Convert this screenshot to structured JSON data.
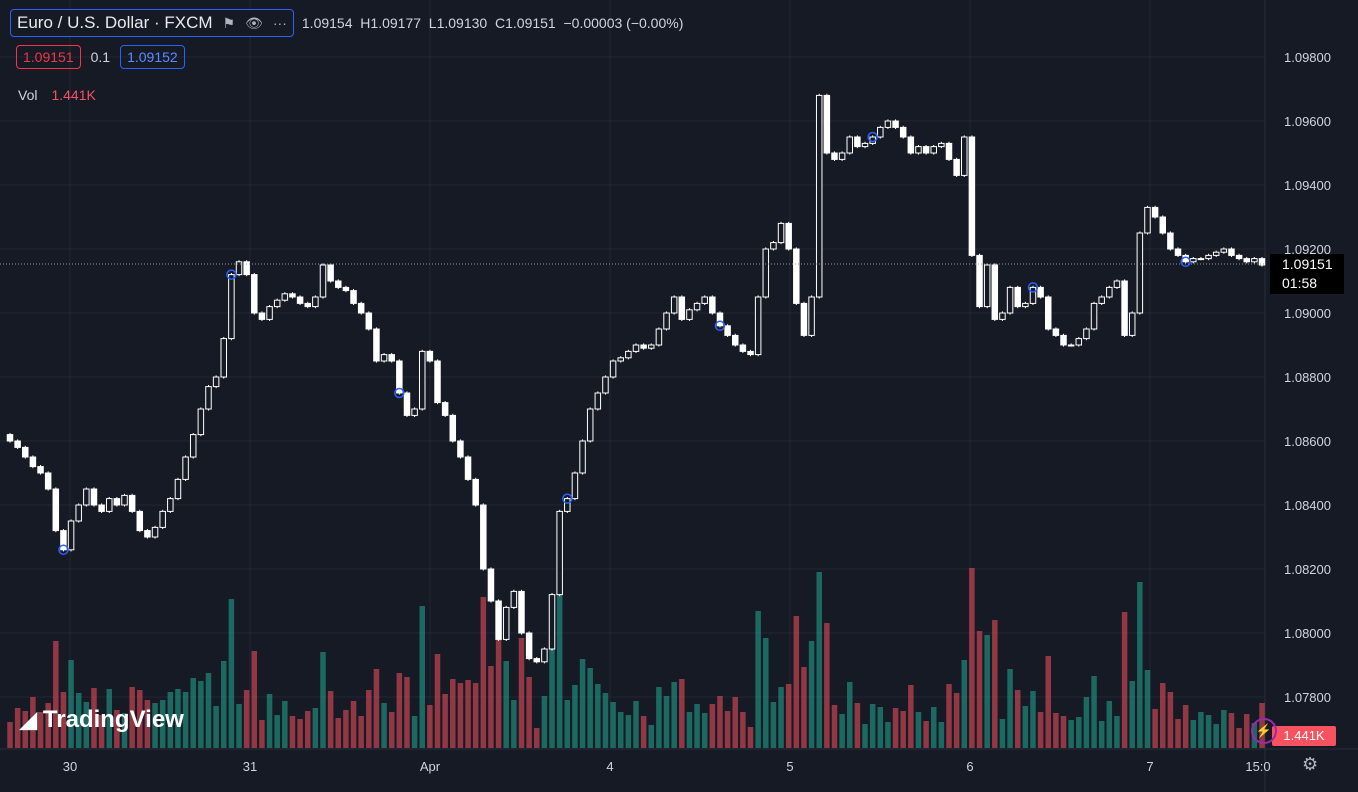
{
  "header": {
    "symbol": "Euro / U.S. Dollar · FXCM",
    "ohlc": {
      "o": "1.09154",
      "h_label": "H",
      "h": "1.09177",
      "l_label": "L",
      "l": "1.09130",
      "c_label": "C",
      "c": "1.09151",
      "change": "−0.00003 (−0.00%)"
    },
    "sell_price": "1.09151",
    "spread": "0.1",
    "buy_price": "1.09152",
    "vol_label": "Vol",
    "vol_value": "1.441K"
  },
  "price_tag": {
    "price": "1.09151",
    "countdown": "01:58"
  },
  "volume_tag": "1.441K",
  "brand": "TradingView",
  "icons": [
    "flag-icon",
    "eye-icon",
    "more-icon",
    "tv-logo-icon",
    "lightning-icon",
    "gear-icon"
  ],
  "colors": {
    "background": "#161a25",
    "up_volume": "#22ab94",
    "down_volume": "#f7525f",
    "candle": "#ffffff",
    "grid": "#232733"
  },
  "chart_data": {
    "type": "candlestick",
    "y_ticks": [
      "1.09800",
      "1.09600",
      "1.09400",
      "1.09200",
      "1.09000",
      "1.08800",
      "1.08600",
      "1.08400",
      "1.08200",
      "1.08000",
      "1.07800"
    ],
    "ylim": [
      1.0768,
      1.099
    ],
    "x_ticks": [
      "30",
      "31",
      "Apr",
      "4",
      "5",
      "6",
      "7",
      "15:0"
    ],
    "close_series": [
      1.086,
      1.0858,
      1.0855,
      1.0852,
      1.085,
      1.0845,
      1.0832,
      1.0826,
      1.0835,
      1.084,
      1.0845,
      1.084,
      1.0838,
      1.0842,
      1.084,
      1.0843,
      1.0838,
      1.0832,
      1.083,
      1.0833,
      1.0838,
      1.0842,
      1.0848,
      1.0855,
      1.0862,
      1.087,
      1.0877,
      1.088,
      1.0892,
      1.0912,
      1.0916,
      1.0912,
      1.09,
      1.0898,
      1.0902,
      1.0904,
      1.0906,
      1.0905,
      1.0903,
      1.0902,
      1.0905,
      1.0915,
      1.091,
      1.0908,
      1.0907,
      1.0903,
      1.09,
      1.0895,
      1.0885,
      1.0887,
      1.0885,
      1.0875,
      1.0868,
      1.087,
      1.0888,
      1.0885,
      1.0872,
      1.0868,
      1.086,
      1.0855,
      1.0848,
      1.084,
      1.082,
      1.081,
      1.0798,
      1.0808,
      1.0813,
      1.08,
      1.0792,
      1.0791,
      1.0795,
      1.0812,
      1.0838,
      1.0842,
      1.085,
      1.086,
      1.087,
      1.0875,
      1.088,
      1.0885,
      1.0886,
      1.0888,
      1.089,
      1.0889,
      1.089,
      1.0895,
      1.09,
      1.0905,
      1.0898,
      1.0901,
      1.0903,
      1.0905,
      1.09,
      1.0896,
      1.0893,
      1.089,
      1.0888,
      1.0887,
      1.0905,
      1.092,
      1.0922,
      1.0928,
      1.092,
      1.0903,
      1.0893,
      1.0905,
      1.0968,
      1.095,
      1.0948,
      1.095,
      1.0955,
      1.0952,
      1.0953,
      1.0955,
      1.0958,
      1.096,
      1.0958,
      1.0955,
      1.095,
      1.0952,
      1.095,
      1.0952,
      1.0953,
      1.0948,
      1.0943,
      1.0955,
      1.0918,
      1.0902,
      1.0915,
      1.0898,
      1.09,
      1.0908,
      1.0902,
      1.0903,
      1.0908,
      1.0905,
      1.0895,
      1.0893,
      1.089,
      1.089,
      1.0892,
      1.0895,
      1.0903,
      1.0905,
      1.0908,
      1.091,
      1.0893,
      1.09,
      1.0925,
      1.0933,
      1.093,
      1.0925,
      1.092,
      1.0918,
      1.0916,
      1.0917,
      1.0917,
      1.0918,
      1.0919,
      1.092,
      1.0918,
      1.0917,
      1.0916,
      1.0917,
      1.0915
    ]
  }
}
